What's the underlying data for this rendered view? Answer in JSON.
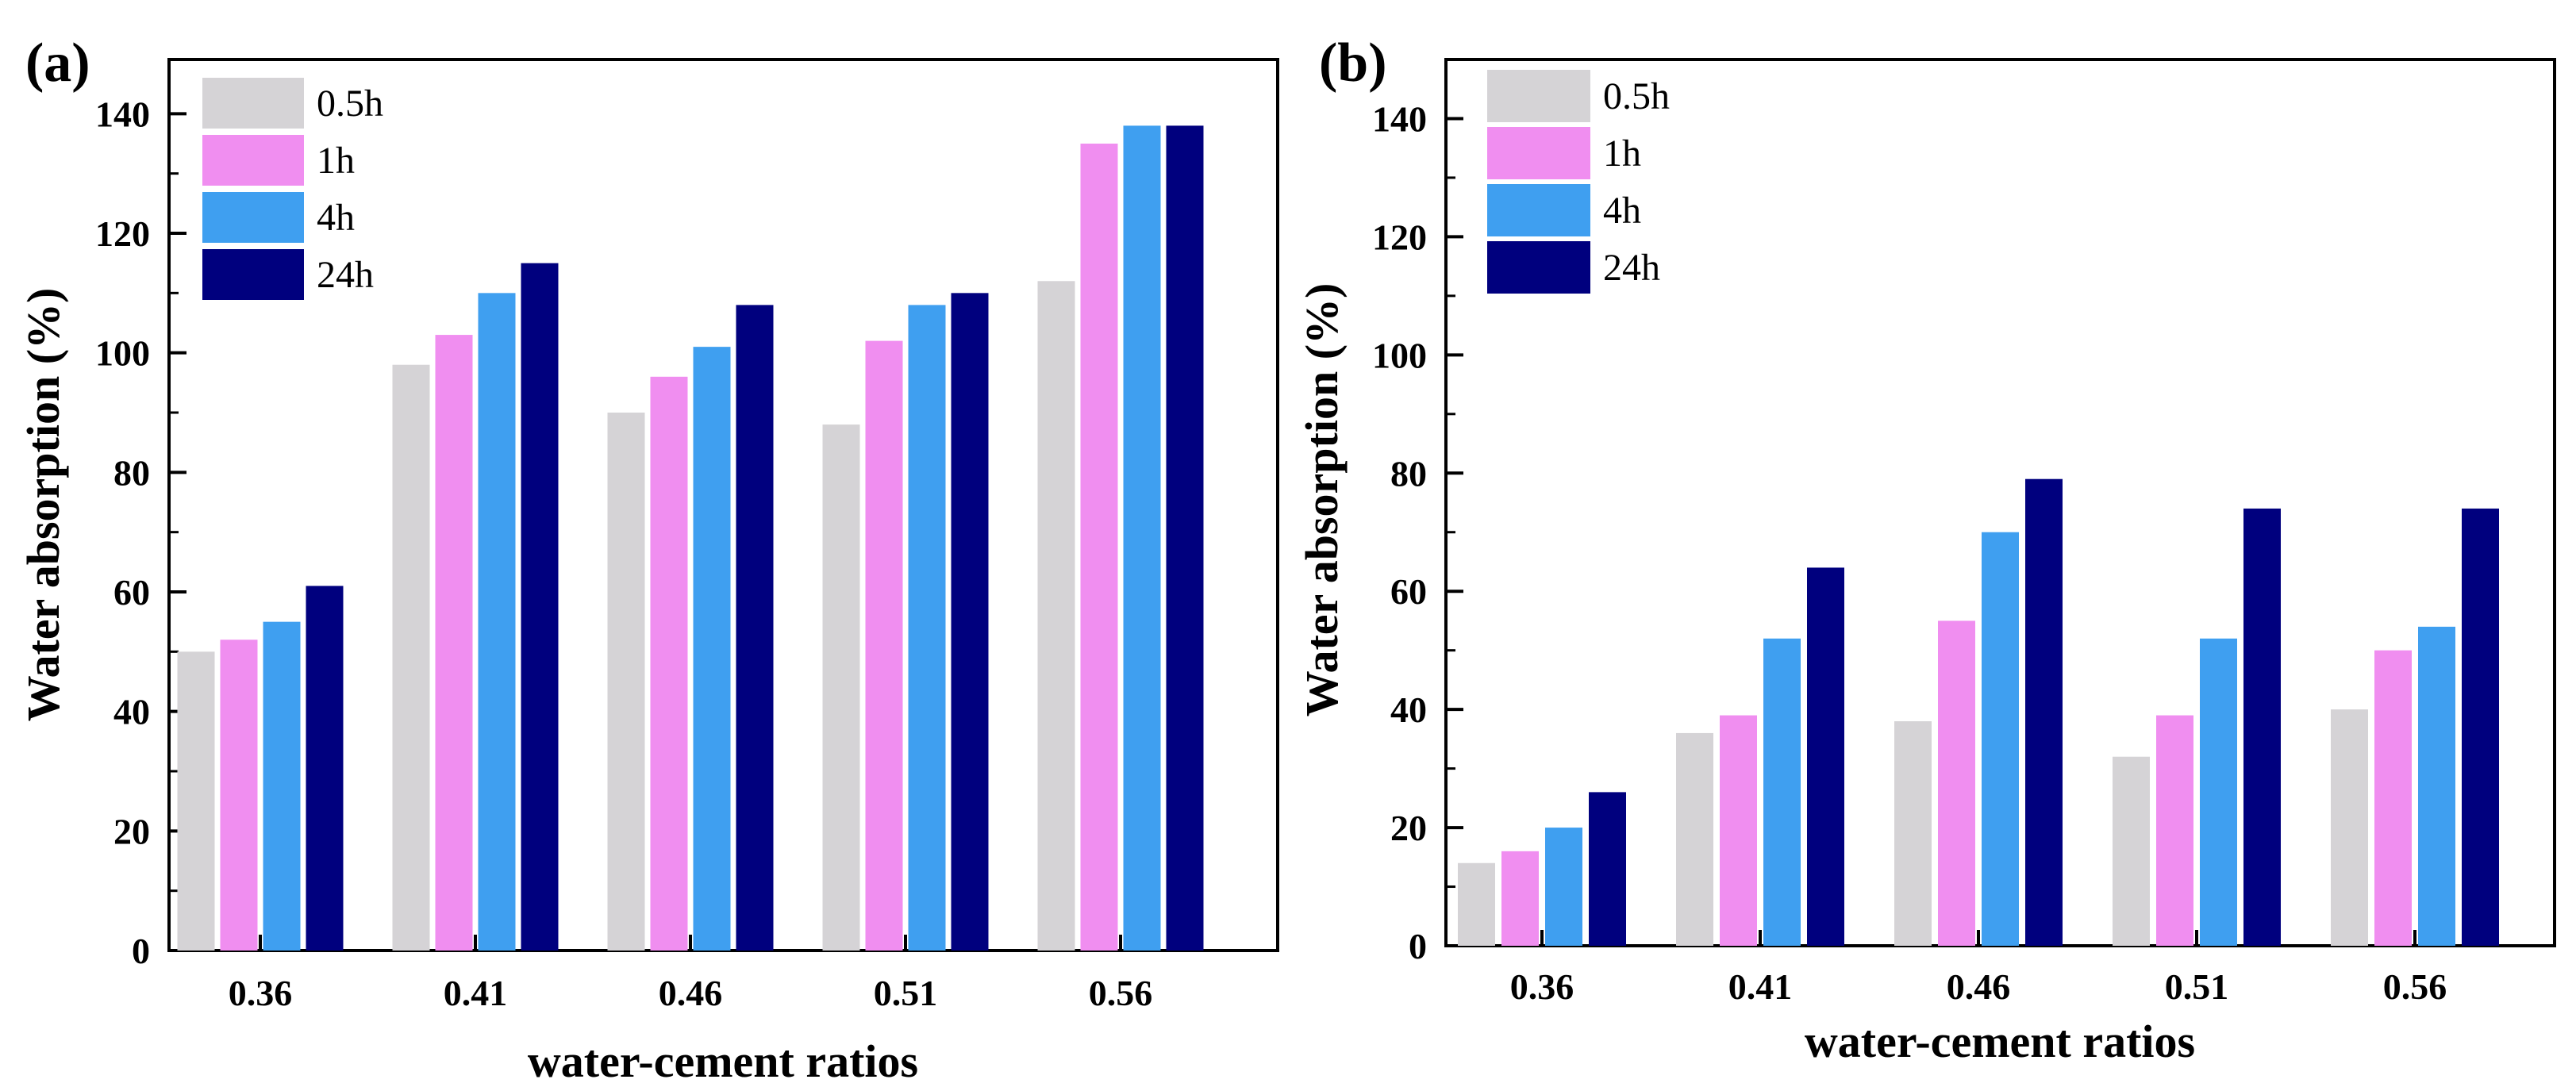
{
  "colors": {
    "0.5h": "#d5d3d6",
    "1h": "#f08ef0",
    "4h": "#3f9ff0",
    "24h": "#00007e"
  },
  "chart_data": [
    {
      "type": "bar",
      "panel_label": "(a)",
      "categories": [
        "0.36",
        "0.41",
        "0.46",
        "0.51",
        "0.56"
      ],
      "series": [
        {
          "name": "0.5h",
          "values": [
            50,
            98,
            90,
            88,
            112
          ]
        },
        {
          "name": "1h",
          "values": [
            52,
            103,
            96,
            102,
            135
          ]
        },
        {
          "name": "4h",
          "values": [
            55,
            110,
            101,
            108,
            138
          ]
        },
        {
          "name": "24h",
          "values": [
            61,
            115,
            108,
            110,
            138
          ]
        }
      ],
      "xlabel": "water-cement ratios",
      "ylabel": "Water absorption (%)",
      "ylim": [
        0,
        150
      ],
      "yticks": [
        0,
        20,
        40,
        60,
        80,
        100,
        120,
        140
      ],
      "legend": "top-left",
      "grid": false
    },
    {
      "type": "bar",
      "panel_label": "(b)",
      "categories": [
        "0.36",
        "0.41",
        "0.46",
        "0.51",
        "0.56"
      ],
      "series": [
        {
          "name": "0.5h",
          "values": [
            14,
            36,
            38,
            32,
            40
          ]
        },
        {
          "name": "1h",
          "values": [
            16,
            39,
            55,
            39,
            50
          ]
        },
        {
          "name": "4h",
          "values": [
            20,
            52,
            70,
            52,
            54
          ]
        },
        {
          "name": "24h",
          "values": [
            26,
            64,
            79,
            74,
            74
          ]
        }
      ],
      "xlabel": "water-cement ratios",
      "ylabel": "Water absorption (%)",
      "ylim": [
        0,
        150
      ],
      "yticks": [
        0,
        20,
        40,
        60,
        80,
        100,
        120,
        140
      ],
      "legend": "top-left",
      "grid": false
    }
  ]
}
